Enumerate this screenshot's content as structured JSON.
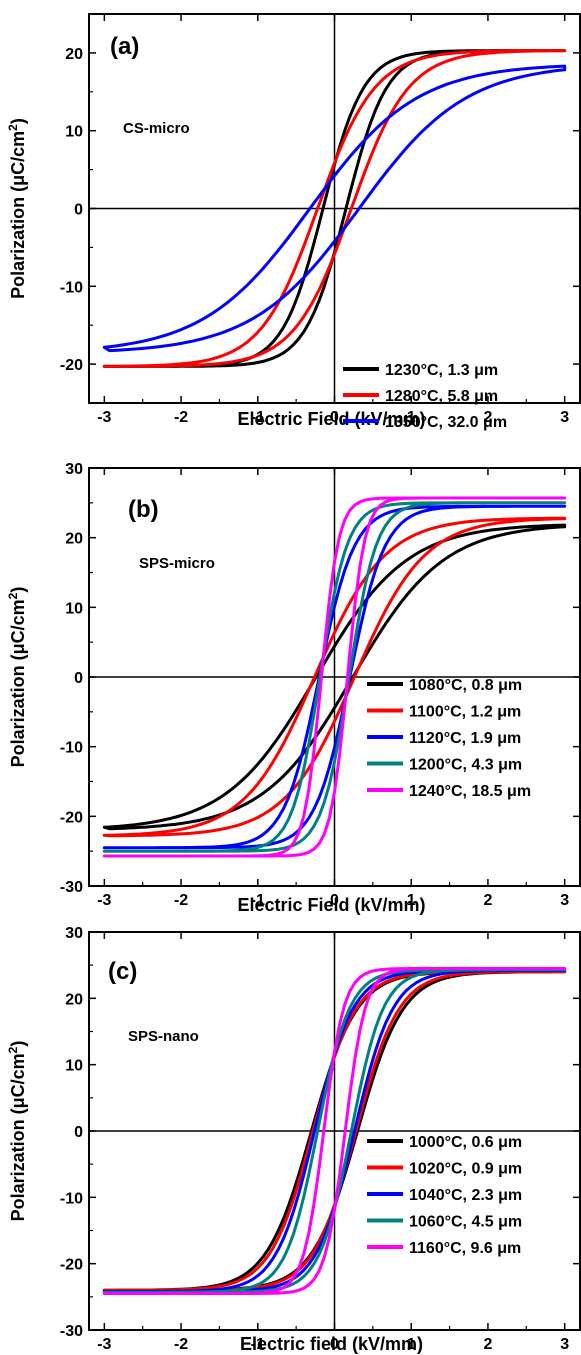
{
  "chart_data": [
    {
      "type": "line",
      "panel_label": "(a)",
      "sample_label": "CS-micro",
      "xlabel": "Electric Field (kV/mm)",
      "ylabel": "Polarization (μC/cm",
      "ylabel_sup": "2",
      "ylabel_close": ")",
      "xlim": [
        -3.2,
        3.2
      ],
      "ylim": [
        -25,
        25
      ],
      "xticks": [
        -3,
        -2,
        -1,
        0,
        1,
        2,
        3
      ],
      "yticks": [
        -20,
        -10,
        0,
        10,
        20
      ],
      "xtick_labels": [
        "-3",
        "-2",
        "-1",
        "0",
        "1",
        "2",
        "3"
      ],
      "ytick_labels": [
        "-20",
        "-10",
        "0",
        "10",
        "20"
      ],
      "grid": false,
      "legend_position": "lower-right",
      "series": [
        {
          "name": "1230°C, 1.3 μm",
          "color": "#000000",
          "emax": 3.0,
          "ps": 20.3,
          "ec": 0.15,
          "k": 1.9
        },
        {
          "name": "1280°C, 5.8 μm",
          "color": "#ff0000",
          "emax": 3.0,
          "ps": 20.3,
          "ec": 0.22,
          "k": 1.35
        },
        {
          "name": "1350°C, 32.0 μm",
          "color": "#0000ff",
          "emax": 3.0,
          "ps": 18.3,
          "ec": 0.32,
          "k": 0.72
        }
      ]
    },
    {
      "type": "line",
      "panel_label": "(b)",
      "sample_label": "SPS-micro",
      "xlabel": "Electric Field (kV/mm)",
      "ylabel": "Polarization (μC/cm",
      "ylabel_sup": "2",
      "ylabel_close": ")",
      "xlim": [
        -3.2,
        3.2
      ],
      "ylim": [
        -30,
        30
      ],
      "xticks": [
        -3,
        -2,
        -1,
        0,
        1,
        2,
        3
      ],
      "yticks": [
        -30,
        -20,
        -10,
        0,
        10,
        20,
        30
      ],
      "xtick_labels": [
        "-3",
        "-2",
        "-1",
        "0",
        "1",
        "2",
        "3"
      ],
      "ytick_labels": [
        "-30",
        "-20",
        "-10",
        "0",
        "10",
        "20",
        "30"
      ],
      "grid": false,
      "legend_position": "lower-right",
      "series": [
        {
          "name": "1080°C, 0.8 μm",
          "color": "#000000",
          "emax": 3.0,
          "ps": 21.8,
          "ec": 0.24,
          "k": 0.85
        },
        {
          "name": "1100°C, 1.2 μm",
          "color": "#ff0000",
          "emax": 3.0,
          "ps": 22.8,
          "ec": 0.26,
          "k": 1.1
        },
        {
          "name": "1120°C, 1.9 μm",
          "color": "#0000ff",
          "emax": 3.0,
          "ps": 24.5,
          "ec": 0.2,
          "k": 2.2
        },
        {
          "name": "1200°C, 4.3 μm",
          "color": "#008080",
          "emax": 3.0,
          "ps": 25.0,
          "ec": 0.19,
          "k": 2.8
        },
        {
          "name": "1240°C, 18.5 μm",
          "color": "#ff00ff",
          "emax": 3.0,
          "ps": 25.7,
          "ec": 0.17,
          "k": 4.5
        }
      ]
    },
    {
      "type": "line",
      "panel_label": "(c)",
      "sample_label": "SPS-nano",
      "xlabel": "Electric field (kV/mm)",
      "ylabel": "Polarization (μC/cm",
      "ylabel_sup": "2",
      "ylabel_close": ")",
      "xlim": [
        -3.2,
        3.2
      ],
      "ylim": [
        -30,
        30
      ],
      "xticks": [
        -3,
        -2,
        -1,
        0,
        1,
        2,
        3
      ],
      "yticks": [
        -30,
        -20,
        -10,
        0,
        10,
        20,
        30
      ],
      "xtick_labels": [
        "-3",
        "-2",
        "-1",
        "0",
        "1",
        "2",
        "3"
      ],
      "ytick_labels": [
        "-30",
        "-20",
        "-10",
        "0",
        "10",
        "20",
        "30"
      ],
      "grid": false,
      "legend_position": "lower-right",
      "series": [
        {
          "name": "1000°C, 0.6 μm",
          "color": "#000000",
          "emax": 3.0,
          "ps": 24.0,
          "ec": 0.3,
          "k": 1.7
        },
        {
          "name": "1020°C, 0.9 μm",
          "color": "#ff0000",
          "emax": 3.0,
          "ps": 24.0,
          "ec": 0.28,
          "k": 1.8
        },
        {
          "name": "1040°C, 2.3 μm",
          "color": "#0000ff",
          "emax": 3.0,
          "ps": 24.2,
          "ec": 0.26,
          "k": 2.0
        },
        {
          "name": "1060°C, 4.5 μm",
          "color": "#008080",
          "emax": 3.0,
          "ps": 24.3,
          "ec": 0.22,
          "k": 2.4
        },
        {
          "name": "1160°C, 9.6 μm",
          "color": "#ff00ff",
          "emax": 3.0,
          "ps": 24.5,
          "ec": 0.14,
          "k": 3.8
        }
      ]
    }
  ]
}
